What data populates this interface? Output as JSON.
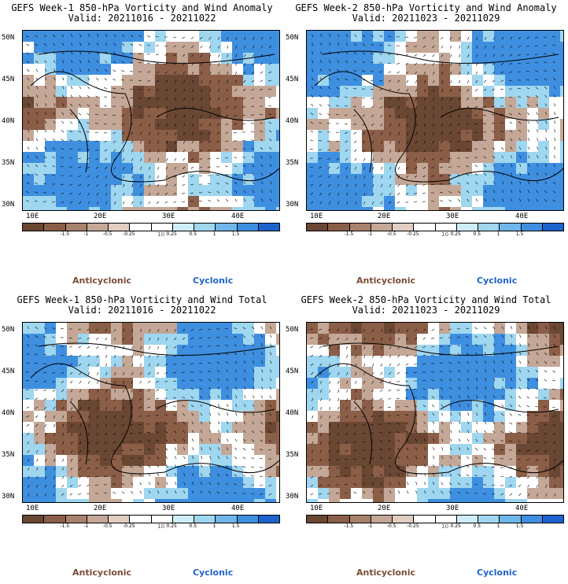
{
  "panels": [
    {
      "line1": "GEFS Week-1 850-hPa Vorticity and Wind Anomaly",
      "line2": "Valid: 20211016 - 20211022"
    },
    {
      "line1": "GEFS Week-2 850-hPa Vorticity and Wind Anomaly",
      "line2": "Valid: 20211023 - 20211029"
    },
    {
      "line1": "GEFS Week-1 850-hPa Vorticity and Wind Total",
      "line2": "Valid: 20211016 - 20211022"
    },
    {
      "line1": "GEFS Week-2 850-hPa Vorticity and Wind Total",
      "line2": "Valid: 20211023 - 20211029"
    }
  ],
  "lat_labels": [
    "50N",
    "45N",
    "40N",
    "35N",
    "30N"
  ],
  "lon_labels": [
    "10E",
    "20E",
    "30E",
    "40E"
  ],
  "colorbar": {
    "ticks": [
      "-1.5",
      "-1",
      "-0.5",
      "-0.25",
      "0.25",
      "0.5",
      "1",
      "1.5"
    ],
    "scale_note": "10",
    "colors": [
      "#6a4733",
      "#8b5e48",
      "#a8826c",
      "#c4a796",
      "#e2cdc2",
      "#ffffff",
      "#ffffff",
      "#cfeef7",
      "#9fd6f0",
      "#6fb6ea",
      "#3f8fe0",
      "#1e63cd"
    ]
  },
  "legend": {
    "anticyclonic": "Anticyclonic",
    "cyclonic": "Cyclonic"
  }
}
